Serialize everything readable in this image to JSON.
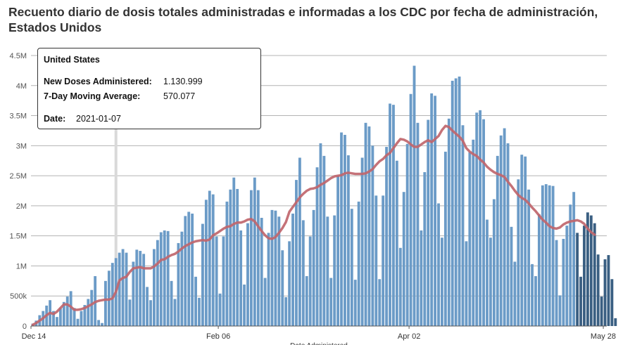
{
  "page": {
    "title": "Recuento diario de dosis totales administradas e informadas a los CDC por fecha de administración, Estados Unidos"
  },
  "tooltip": {
    "region": "United States",
    "doses_label": "New Doses Administered:",
    "doses_value": "1.130.999",
    "avg_label": "7-Day Moving Average:",
    "avg_value": "570.077",
    "date_label": "Date:",
    "date_value": "2021-01-07"
  },
  "colors": {
    "bar": "#6b9bc7",
    "bar_recent": "#3a5f82",
    "avg_line": "#c0666c",
    "grid": "#b3b3b3",
    "hover": "#d9d9d9"
  },
  "chart_data": {
    "type": "bar",
    "title": "Recuento diario de dosis totales administradas e informadas a los CDC por fecha de administración, Estados Unidos",
    "xlabel": "Date Administered",
    "ylabel": "",
    "ylim": [
      0,
      4500000
    ],
    "y_ticks": [
      {
        "value": 0,
        "label": "0"
      },
      {
        "value": 500000,
        "label": "500k"
      },
      {
        "value": 1000000,
        "label": "1M"
      },
      {
        "value": 1500000,
        "label": "1.5M"
      },
      {
        "value": 2000000,
        "label": "2M"
      },
      {
        "value": 2500000,
        "label": "2.5M"
      },
      {
        "value": 3000000,
        "label": "3M"
      },
      {
        "value": 3500000,
        "label": "3.5M"
      },
      {
        "value": 4000000,
        "label": "4M"
      },
      {
        "value": 4500000,
        "label": "4.5M"
      }
    ],
    "x_ticks": [
      {
        "day_index": 0,
        "label": "Dec 14"
      },
      {
        "day_index": 54,
        "label": "Feb 06"
      },
      {
        "day_index": 109,
        "label": "Apr 02"
      },
      {
        "day_index": 165,
        "label": "May 28"
      }
    ],
    "grid": true,
    "hover_day_index": 24,
    "recent_incomplete_from_index": 157,
    "series": [
      {
        "name": "New Doses Administered",
        "start_date": "2020-12-14",
        "values": [
          40000,
          90000,
          180000,
          250000,
          340000,
          430000,
          250000,
          150000,
          300000,
          400000,
          490000,
          580000,
          300000,
          120000,
          250000,
          350000,
          450000,
          600000,
          830000,
          100000,
          50000,
          750000,
          920000,
          1050000,
          1130000,
          1220000,
          1280000,
          1220000,
          440000,
          1070000,
          1270000,
          1250000,
          1200000,
          650000,
          430000,
          1280000,
          1430000,
          1560000,
          1590000,
          1580000,
          750000,
          450000,
          1380000,
          1570000,
          1830000,
          1900000,
          1870000,
          820000,
          470000,
          1700000,
          2100000,
          2250000,
          2190000,
          1490000,
          540000,
          1490000,
          2070000,
          2270000,
          2470000,
          2280000,
          1590000,
          690000,
          1710000,
          2260000,
          2470000,
          2260000,
          1800000,
          800000,
          1550000,
          1930000,
          1920000,
          1820000,
          1260000,
          480000,
          1410000,
          1870000,
          2430000,
          2800000,
          1760000,
          830000,
          1490000,
          1930000,
          2640000,
          3040000,
          2830000,
          1820000,
          800000,
          1840000,
          2500000,
          3220000,
          3180000,
          2840000,
          1950000,
          770000,
          2070000,
          2800000,
          3380000,
          3320000,
          3000000,
          2170000,
          780000,
          2170000,
          2980000,
          3700000,
          3680000,
          2750000,
          1300000,
          2230000,
          3030000,
          3860000,
          4330000,
          3380000,
          1590000,
          2560000,
          3430000,
          3870000,
          3830000,
          2040000,
          1470000,
          2900000,
          3450000,
          4080000,
          4120000,
          4150000,
          3340000,
          1410000,
          2890000,
          3100000,
          3550000,
          3590000,
          3440000,
          1770000,
          1470000,
          2110000,
          2830000,
          3170000,
          3290000,
          3040000,
          1650000,
          1070000,
          2440000,
          2850000,
          2820000,
          2270000,
          1030000,
          830000,
          1860000,
          2340000,
          2360000,
          2340000,
          2330000,
          1430000,
          510000,
          1450000,
          1670000,
          2020000,
          2230000,
          1550000,
          820000,
          1670000,
          1890000,
          1840000,
          1710000,
          1190000,
          490000,
          1110000,
          1180000,
          780000,
          130000
        ]
      },
      {
        "name": "7-Day Moving Average",
        "start_date": "2020-12-14",
        "values": [
          20000,
          50000,
          90000,
          130000,
          180000,
          220000,
          200000,
          240000,
          300000,
          360000,
          360000,
          320000,
          270000,
          270000,
          280000,
          300000,
          330000,
          360000,
          400000,
          420000,
          430000,
          440000,
          440000,
          460000,
          570000,
          760000,
          800000,
          820000,
          900000,
          960000,
          970000,
          980000,
          960000,
          960000,
          960000,
          990000,
          1040000,
          1100000,
          1110000,
          1150000,
          1180000,
          1200000,
          1240000,
          1290000,
          1330000,
          1360000,
          1390000,
          1410000,
          1420000,
          1430000,
          1420000,
          1440000,
          1510000,
          1540000,
          1580000,
          1620000,
          1650000,
          1660000,
          1700000,
          1720000,
          1720000,
          1740000,
          1770000,
          1780000,
          1740000,
          1660000,
          1580000,
          1510000,
          1460000,
          1450000,
          1480000,
          1550000,
          1630000,
          1730000,
          1900000,
          1980000,
          2060000,
          2140000,
          2200000,
          2250000,
          2280000,
          2290000,
          2310000,
          2350000,
          2380000,
          2420000,
          2460000,
          2490000,
          2500000,
          2510000,
          2540000,
          2550000,
          2540000,
          2530000,
          2530000,
          2530000,
          2540000,
          2570000,
          2610000,
          2680000,
          2740000,
          2780000,
          2840000,
          2880000,
          2960000,
          3040000,
          3110000,
          3100000,
          3070000,
          3020000,
          2980000,
          2980000,
          3020000,
          3060000,
          3090000,
          3060000,
          3110000,
          3160000,
          3260000,
          3330000,
          3310000,
          3250000,
          3200000,
          3150000,
          3080000,
          2960000,
          2900000,
          2860000,
          2830000,
          2770000,
          2720000,
          2650000,
          2600000,
          2560000,
          2530000,
          2510000,
          2480000,
          2400000,
          2330000,
          2250000,
          2180000,
          2130000,
          2100000,
          2040000,
          1970000,
          1910000,
          1840000,
          1770000,
          1720000,
          1660000,
          1630000,
          1620000,
          1640000,
          1690000,
          1720000,
          1740000,
          1750000,
          1760000,
          1740000,
          1700000,
          1620000,
          1560000,
          1520000
        ]
      }
    ]
  }
}
